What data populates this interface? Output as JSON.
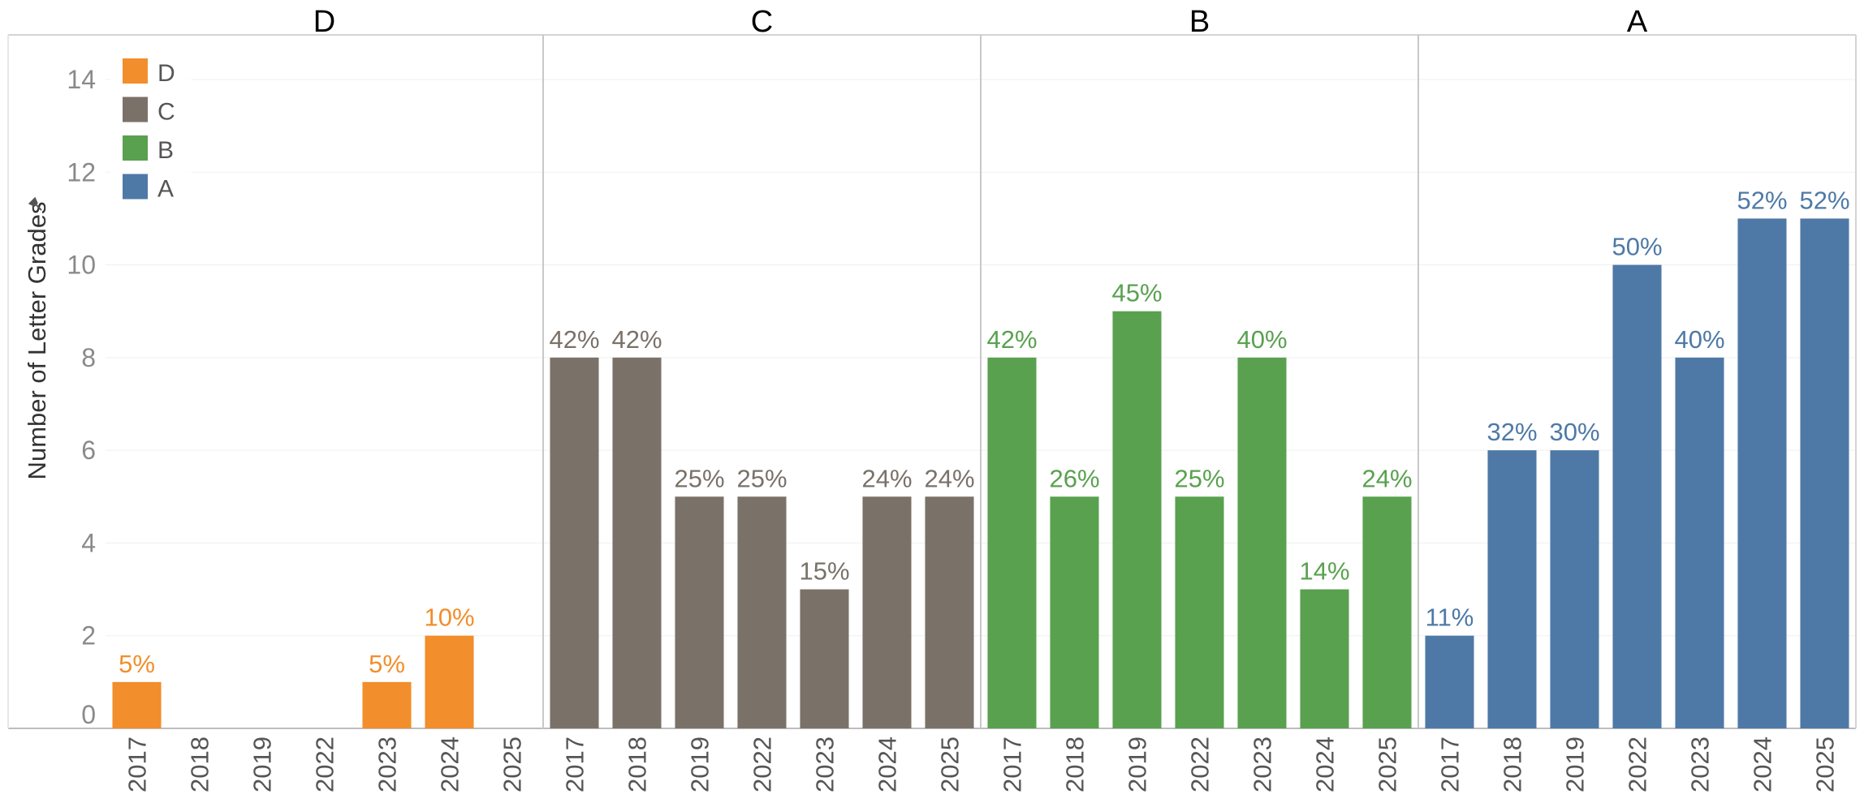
{
  "chart_data": {
    "type": "bar",
    "ylabel": "Number of Letter Grades",
    "ylim": [
      0,
      15
    ],
    "yticks": [
      0,
      2,
      4,
      6,
      8,
      10,
      12,
      14
    ],
    "grid": true,
    "legend": {
      "placement": "top-left",
      "entries": [
        {
          "label": "D",
          "color": "#f28e2b"
        },
        {
          "label": "C",
          "color": "#7a7169"
        },
        {
          "label": "B",
          "color": "#59a14f"
        },
        {
          "label": "A",
          "color": "#4e79a7"
        }
      ]
    },
    "categories": [
      "2017",
      "2018",
      "2019",
      "2022",
      "2023",
      "2024",
      "2025"
    ],
    "panels": [
      {
        "name": "D",
        "color": "#f28e2b",
        "values": [
          1,
          null,
          null,
          null,
          1,
          2,
          null
        ],
        "labels": [
          "5%",
          "",
          "",
          "",
          "5%",
          "10%",
          ""
        ]
      },
      {
        "name": "C",
        "color": "#7a7169",
        "values": [
          8,
          8,
          5,
          5,
          3,
          5,
          5
        ],
        "labels": [
          "42%",
          "42%",
          "25%",
          "25%",
          "15%",
          "24%",
          "24%"
        ]
      },
      {
        "name": "B",
        "color": "#59a14f",
        "values": [
          8,
          5,
          9,
          5,
          8,
          3,
          5
        ],
        "labels": [
          "42%",
          "26%",
          "45%",
          "25%",
          "40%",
          "14%",
          "24%"
        ]
      },
      {
        "name": "A",
        "color": "#4e79a7",
        "values": [
          2,
          6,
          6,
          10,
          8,
          11,
          11
        ],
        "labels": [
          "11%",
          "32%",
          "30%",
          "50%",
          "40%",
          "52%",
          "52%"
        ]
      }
    ]
  }
}
